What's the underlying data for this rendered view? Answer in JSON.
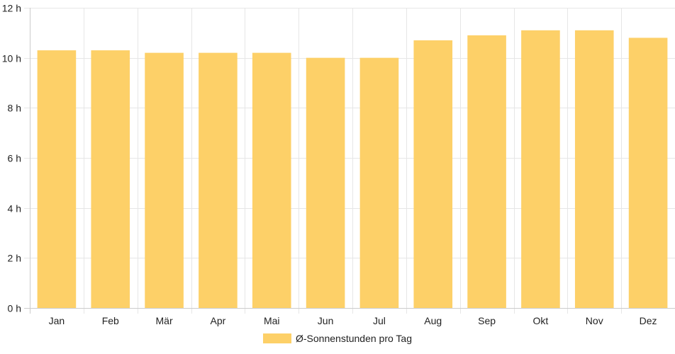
{
  "chart_data": {
    "type": "bar",
    "categories": [
      "Jan",
      "Feb",
      "Mär",
      "Apr",
      "Mai",
      "Jun",
      "Jul",
      "Aug",
      "Sep",
      "Okt",
      "Nov",
      "Dez"
    ],
    "series": [
      {
        "name": "Ø-Sonnenstunden pro Tag",
        "values": [
          10.3,
          10.3,
          10.2,
          10.2,
          10.2,
          10.0,
          10.0,
          10.7,
          10.9,
          11.1,
          11.1,
          10.8
        ]
      }
    ],
    "y_ticks": [
      "0 h",
      "2 h",
      "4 h",
      "6 h",
      "8 h",
      "10 h",
      "12 h"
    ],
    "ylim": [
      0,
      12
    ],
    "grid": true,
    "legend_position": "bottom",
    "colors": {
      "bar": "#fdd068",
      "grid": "#e6e6e6",
      "axis": "#cccccc"
    }
  }
}
